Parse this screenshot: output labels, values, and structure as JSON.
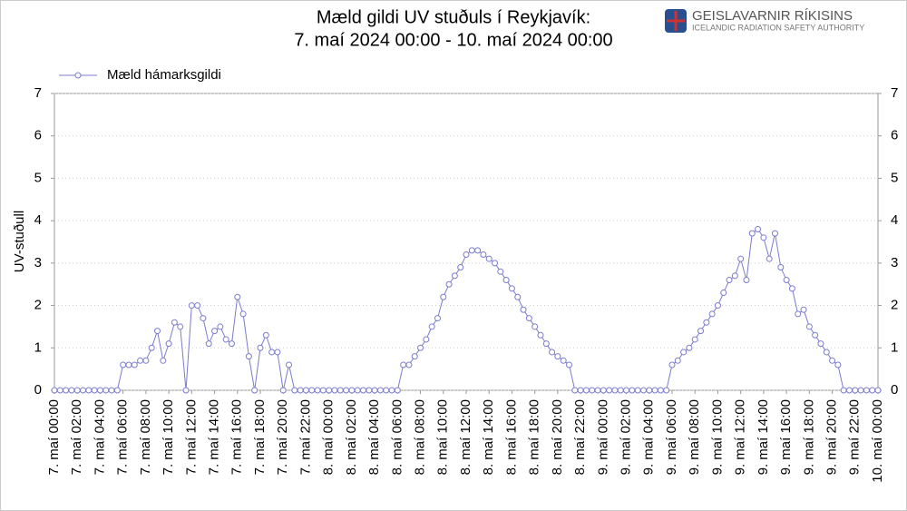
{
  "chart_data": {
    "type": "line",
    "title": [
      "Mæld gildi UV stuðuls í Reykjavík:",
      "7. maí 2024 00:00 - 10. maí 2024 00:00"
    ],
    "logo": {
      "name": "GEISLAVARNIR RÍKISINS",
      "subtitle": "ICELANDIC RADIATION SAFETY AUTHORITY"
    },
    "y_label": "UV-stuðull",
    "legend": "top-left",
    "grid": true,
    "x": [
      0,
      0.5,
      1,
      1.5,
      2,
      2.5,
      3,
      3.5,
      4,
      4.5,
      5,
      5.5,
      6,
      6.5,
      7,
      7.5,
      8,
      8.5,
      9,
      9.5,
      10,
      10.5,
      11,
      11.5,
      12,
      12.5,
      13,
      13.5,
      14,
      14.5,
      15,
      15.5,
      16,
      16.5,
      17,
      17.5,
      18,
      18.5,
      19,
      19.5,
      20,
      20.5,
      21,
      21.5,
      22,
      22.5,
      23,
      23.5,
      24,
      24.5,
      25,
      25.5,
      26,
      26.5,
      27,
      27.5,
      28,
      28.5,
      29,
      29.5,
      30,
      30.5,
      31,
      31.5,
      32,
      32.5,
      33,
      33.5,
      34,
      34.5,
      35,
      35.5,
      36,
      36.5,
      37,
      37.5,
      38,
      38.5,
      39,
      39.5,
      40,
      40.5,
      41,
      41.5,
      42,
      42.5,
      43,
      43.5,
      44,
      44.5,
      45,
      45.5,
      46,
      46.5,
      47,
      47.5,
      48,
      48.5,
      49,
      49.5,
      50,
      50.5,
      51,
      51.5,
      52,
      52.5,
      53,
      53.5,
      54,
      54.5,
      55,
      55.5,
      56,
      56.5,
      57,
      57.5,
      58,
      58.5,
      59,
      59.5,
      60,
      60.5,
      61,
      61.5,
      62,
      62.5,
      63,
      63.5,
      64,
      64.5,
      65,
      65.5,
      66,
      66.5,
      67,
      67.5,
      68,
      68.5,
      69,
      69.5,
      70,
      70.5,
      71,
      71.5,
      72
    ],
    "series": [
      {
        "name": "Mæld hámarksgildi",
        "color": "#7b7bd0",
        "values": [
          0,
          0,
          0,
          0,
          0,
          0,
          0,
          0,
          0,
          0,
          0,
          0,
          0.6,
          0.6,
          0.6,
          0.7,
          0.7,
          1.0,
          1.4,
          0.7,
          1.1,
          1.6,
          1.5,
          0,
          2.0,
          2.0,
          1.7,
          1.1,
          1.4,
          1.5,
          1.2,
          1.1,
          2.2,
          1.8,
          0.8,
          0,
          1.0,
          1.3,
          0.9,
          0.9,
          0,
          0.6,
          0,
          0,
          0,
          0,
          0,
          0,
          0,
          0,
          0,
          0,
          0,
          0,
          0,
          0,
          0,
          0,
          0,
          0,
          0,
          0.6,
          0.6,
          0.8,
          1.0,
          1.2,
          1.5,
          1.7,
          2.2,
          2.5,
          2.7,
          2.9,
          3.2,
          3.3,
          3.3,
          3.2,
          3.1,
          3.0,
          2.8,
          2.6,
          2.4,
          2.2,
          1.9,
          1.7,
          1.5,
          1.3,
          1.1,
          0.9,
          0.8,
          0.7,
          0.6,
          0,
          0,
          0,
          0,
          0,
          0,
          0,
          0,
          0,
          0,
          0,
          0,
          0,
          0,
          0,
          0,
          0,
          0.6,
          0.7,
          0.9,
          1.0,
          1.2,
          1.4,
          1.6,
          1.8,
          2.0,
          2.3,
          2.6,
          2.7,
          3.1,
          2.6,
          3.7,
          3.8,
          3.6,
          3.1,
          3.7,
          2.9,
          2.6,
          2.4,
          1.8,
          1.9,
          1.5,
          1.3,
          1.1,
          0.9,
          0.7,
          0.6,
          0,
          0,
          0,
          0,
          0,
          0,
          0
        ]
      }
    ],
    "xlim": [
      0,
      72
    ],
    "xticks": [
      {
        "value": 0,
        "label": "7. maí 00:00"
      },
      {
        "value": 2,
        "label": "7. maí 02:00"
      },
      {
        "value": 4,
        "label": "7. maí 04:00"
      },
      {
        "value": 6,
        "label": "7. maí 06:00"
      },
      {
        "value": 8,
        "label": "7. maí 08:00"
      },
      {
        "value": 10,
        "label": "7. maí 10:00"
      },
      {
        "value": 12,
        "label": "7. maí 12:00"
      },
      {
        "value": 14,
        "label": "7. maí 14:00"
      },
      {
        "value": 16,
        "label": "7. maí 16:00"
      },
      {
        "value": 18,
        "label": "7. maí 18:00"
      },
      {
        "value": 20,
        "label": "7. maí 20:00"
      },
      {
        "value": 22,
        "label": "7. maí 22:00"
      },
      {
        "value": 24,
        "label": "8. maí 00:00"
      },
      {
        "value": 26,
        "label": "8. maí 02:00"
      },
      {
        "value": 28,
        "label": "8. maí 04:00"
      },
      {
        "value": 30,
        "label": "8. maí 06:00"
      },
      {
        "value": 32,
        "label": "8. maí 08:00"
      },
      {
        "value": 34,
        "label": "8. maí 10:00"
      },
      {
        "value": 36,
        "label": "8. maí 12:00"
      },
      {
        "value": 38,
        "label": "8. maí 14:00"
      },
      {
        "value": 40,
        "label": "8. maí 16:00"
      },
      {
        "value": 42,
        "label": "8. maí 18:00"
      },
      {
        "value": 44,
        "label": "8. maí 20:00"
      },
      {
        "value": 46,
        "label": "8. maí 22:00"
      },
      {
        "value": 48,
        "label": "9. maí 00:00"
      },
      {
        "value": 50,
        "label": "9. maí 02:00"
      },
      {
        "value": 52,
        "label": "9. maí 04:00"
      },
      {
        "value": 54,
        "label": "9. maí 06:00"
      },
      {
        "value": 56,
        "label": "9. maí 08:00"
      },
      {
        "value": 58,
        "label": "9. maí 10:00"
      },
      {
        "value": 60,
        "label": "9. maí 12:00"
      },
      {
        "value": 62,
        "label": "9. maí 14:00"
      },
      {
        "value": 64,
        "label": "9. maí 16:00"
      },
      {
        "value": 66,
        "label": "9. maí 18:00"
      },
      {
        "value": 68,
        "label": "9. maí 20:00"
      },
      {
        "value": 70,
        "label": "9. maí 22:00"
      },
      {
        "value": 72,
        "label": "10. maí 00:00"
      }
    ],
    "ylim": [
      0,
      7
    ],
    "yticks": [
      0,
      1,
      2,
      3,
      4,
      5,
      6,
      7
    ],
    "y2lim": [
      0,
      7
    ],
    "y2ticks": [
      0,
      1,
      2,
      3,
      4,
      5,
      6,
      7
    ]
  }
}
